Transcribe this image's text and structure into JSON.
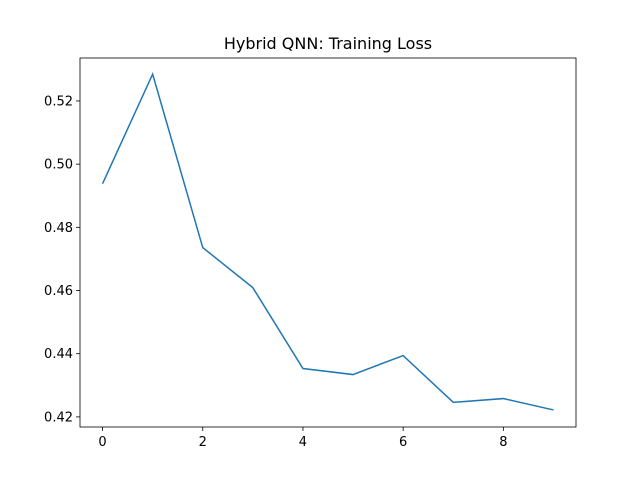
{
  "chart_data": {
    "type": "line",
    "title": "Hybrid QNN: Training Loss",
    "x": [
      0,
      1,
      2,
      3,
      4,
      5,
      6,
      7,
      8,
      9
    ],
    "series": [
      {
        "name": "Training Loss",
        "color": "#1f77b4",
        "values": [
          0.4938,
          0.5285,
          0.4736,
          0.4609,
          0.4353,
          0.4334,
          0.4394,
          0.4246,
          0.4258,
          0.4222
        ]
      }
    ],
    "xlim": [
      -0.45,
      9.45
    ],
    "xticks": [
      0,
      2,
      4,
      6,
      8
    ],
    "ylim": [
      0.4168,
      0.5336
    ],
    "yticks": [
      0.42,
      0.44,
      0.46,
      0.48,
      {
        "value": 0.5,
        "label": "0.50"
      },
      0.52
    ],
    "grid": false
  }
}
